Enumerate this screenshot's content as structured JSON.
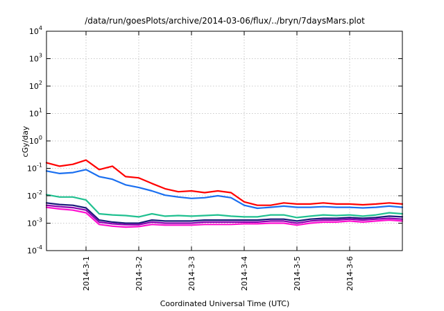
{
  "chart_data": {
    "type": "line",
    "title": "/data/run/goesPlots/archive/2014-03-06/flux/../bryn/7daysMars.plot",
    "xlabel": "Coordinated Universal Time (UTC)",
    "ylabel": "cGy/day",
    "yscale": "log",
    "ylim": [
      0.0001,
      10000
    ],
    "y_ticks": [
      {
        "base": "10",
        "exp": "-4",
        "value": 0.0001
      },
      {
        "base": "10",
        "exp": "-3",
        "value": 0.001
      },
      {
        "base": "10",
        "exp": "-2",
        "value": 0.01
      },
      {
        "base": "10",
        "exp": "-1",
        "value": 0.1
      },
      {
        "base": "10",
        "exp": "0",
        "value": 1
      },
      {
        "base": "10",
        "exp": "1",
        "value": 10
      },
      {
        "base": "10",
        "exp": "2",
        "value": 100
      },
      {
        "base": "10",
        "exp": "3",
        "value": 1000
      },
      {
        "base": "10",
        "exp": "4",
        "value": 10000
      }
    ],
    "xlim": [
      "2014-02-28 06:00",
      "2014-03-07 00:00"
    ],
    "x_ticks": [
      "2014-3-1",
      "2014-3-2",
      "2014-3-3",
      "2014-3-4",
      "2014-3-5",
      "2014-3-6"
    ],
    "grid": true,
    "x": [
      "2014-02-28 06:00",
      "2014-02-28 12:00",
      "2014-02-28 18:00",
      "2014-03-01 00:00",
      "2014-03-01 06:00",
      "2014-03-01 12:00",
      "2014-03-01 18:00",
      "2014-03-02 00:00",
      "2014-03-02 06:00",
      "2014-03-02 12:00",
      "2014-03-02 18:00",
      "2014-03-03 00:00",
      "2014-03-03 06:00",
      "2014-03-03 12:00",
      "2014-03-03 18:00",
      "2014-03-04 00:00",
      "2014-03-04 06:00",
      "2014-03-04 12:00",
      "2014-03-04 18:00",
      "2014-03-05 00:00",
      "2014-03-05 06:00",
      "2014-03-05 12:00",
      "2014-03-05 18:00",
      "2014-03-06 00:00",
      "2014-03-06 06:00",
      "2014-03-06 12:00",
      "2014-03-06 18:00",
      "2014-03-07 00:00"
    ],
    "series": [
      {
        "color": "#ff0000",
        "values": [
          0.16,
          0.12,
          0.14,
          0.2,
          0.09,
          0.12,
          0.05,
          0.045,
          0.028,
          0.018,
          0.014,
          0.015,
          0.013,
          0.015,
          0.013,
          0.006,
          0.0045,
          0.0045,
          0.0055,
          0.005,
          0.005,
          0.0055,
          0.005,
          0.005,
          0.0047,
          0.005,
          0.0055,
          0.005
        ]
      },
      {
        "color": "#1a6ff0",
        "values": [
          0.08,
          0.065,
          0.07,
          0.09,
          0.05,
          0.04,
          0.025,
          0.02,
          0.015,
          0.0105,
          0.009,
          0.008,
          0.0085,
          0.01,
          0.0085,
          0.0045,
          0.0035,
          0.0038,
          0.0042,
          0.0038,
          0.0038,
          0.004,
          0.0038,
          0.0038,
          0.0036,
          0.0038,
          0.0042,
          0.0038
        ]
      },
      {
        "color": "#20c090",
        "values": [
          0.011,
          0.009,
          0.009,
          0.007,
          0.0022,
          0.002,
          0.0019,
          0.0017,
          0.0022,
          0.0018,
          0.0019,
          0.0018,
          0.0019,
          0.002,
          0.0018,
          0.0017,
          0.0017,
          0.002,
          0.002,
          0.0016,
          0.0018,
          0.002,
          0.0019,
          0.002,
          0.0018,
          0.002,
          0.0024,
          0.0022
        ]
      },
      {
        "color": "#1a1a7a",
        "values": [
          0.0055,
          0.0048,
          0.0045,
          0.0036,
          0.0013,
          0.0011,
          0.001,
          0.001,
          0.0013,
          0.0012,
          0.0012,
          0.0012,
          0.0013,
          0.0013,
          0.0013,
          0.0013,
          0.0013,
          0.0014,
          0.0014,
          0.0012,
          0.0014,
          0.0015,
          0.0015,
          0.0016,
          0.0015,
          0.0016,
          0.0018,
          0.0017
        ]
      },
      {
        "color": "#8a00b0",
        "values": [
          0.0045,
          0.004,
          0.0037,
          0.003,
          0.0011,
          0.00095,
          0.00088,
          0.00088,
          0.0011,
          0.001,
          0.001,
          0.001,
          0.0011,
          0.0011,
          0.0011,
          0.0011,
          0.0011,
          0.0012,
          0.0012,
          0.001,
          0.0012,
          0.0013,
          0.0013,
          0.0014,
          0.0013,
          0.0014,
          0.0015,
          0.0014
        ]
      },
      {
        "color": "#ff10d0",
        "values": [
          0.0038,
          0.0033,
          0.003,
          0.0024,
          0.0009,
          0.00078,
          0.00072,
          0.00075,
          0.0009,
          0.00085,
          0.00085,
          0.00085,
          0.0009,
          0.0009,
          0.0009,
          0.00095,
          0.00095,
          0.001,
          0.001,
          0.00085,
          0.001,
          0.0011,
          0.0011,
          0.0012,
          0.0011,
          0.0012,
          0.0013,
          0.0012
        ]
      }
    ]
  }
}
